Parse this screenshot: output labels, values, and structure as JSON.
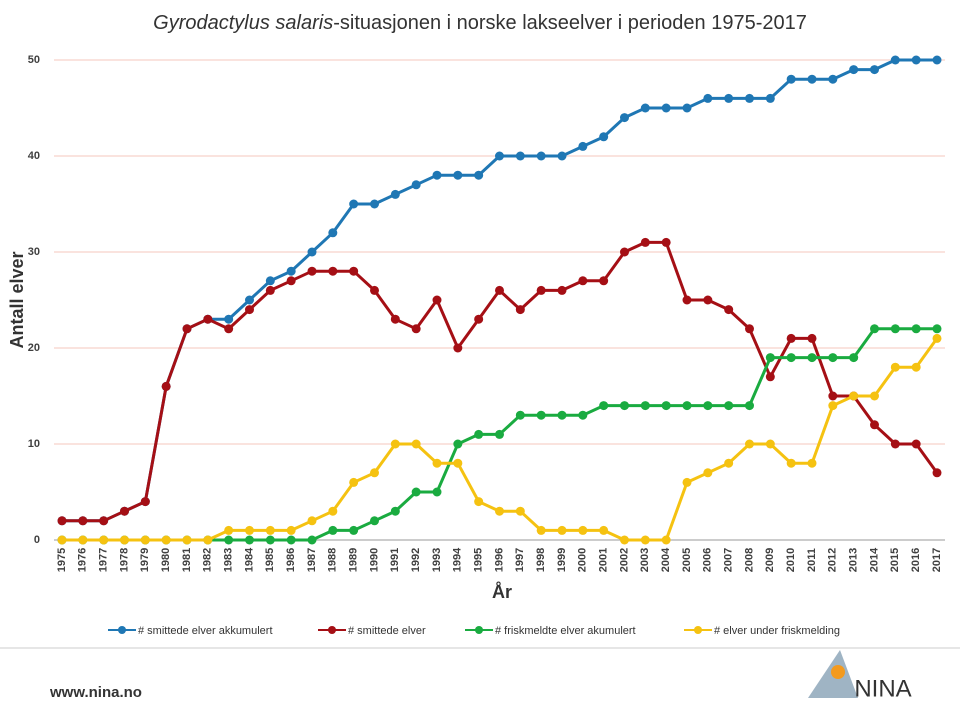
{
  "chart_data": {
    "type": "line",
    "title": [
      "Gyrodactylus salaris",
      "-situasjonen i norske lakseelver i perioden 1975-2017"
    ],
    "x_label": "År",
    "y_label": "Antall elver",
    "categories": [
      "1975",
      "1976",
      "1977",
      "1978",
      "1979",
      "1980",
      "1981",
      "1982",
      "1983",
      "1984",
      "1985",
      "1986",
      "1987",
      "1988",
      "1989",
      "1990",
      "1991",
      "1992",
      "1993",
      "1994",
      "1995",
      "1996",
      "1997",
      "1998",
      "1999",
      "2000",
      "2001",
      "2002",
      "2003",
      "2004",
      "2005",
      "2006",
      "2007",
      "2008",
      "2009",
      "2010",
      "2011",
      "2012",
      "2013",
      "2014",
      "2015",
      "2016",
      "2017"
    ],
    "ylim": [
      0,
      50
    ],
    "yticks": [
      0,
      10,
      20,
      30,
      40,
      50
    ],
    "grid": true,
    "legend": "bottom",
    "series": [
      {
        "name": "# smittede elver akkumulert",
        "color": "#1f77b4",
        "values": [
          2,
          2,
          2,
          3,
          4,
          16,
          22,
          23,
          23,
          25,
          27,
          28,
          30,
          32,
          35,
          35,
          36,
          37,
          38,
          38,
          38,
          40,
          40,
          40,
          40,
          41,
          42,
          44,
          45,
          45,
          45,
          46,
          46,
          46,
          46,
          48,
          48,
          48,
          49,
          49,
          50,
          50,
          50
        ]
      },
      {
        "name": "# smittede elver",
        "color": "#a50f15",
        "values": [
          2,
          2,
          2,
          3,
          4,
          16,
          22,
          23,
          22,
          24,
          26,
          27,
          28,
          28,
          28,
          26,
          23,
          22,
          25,
          20,
          23,
          26,
          24,
          26,
          26,
          27,
          27,
          30,
          31,
          31,
          25,
          25,
          24,
          22,
          17,
          21,
          21,
          15,
          15,
          12,
          10,
          10,
          7
        ]
      },
      {
        "name": "# friskmeldte elver akumulert",
        "color": "#1aab40",
        "values": [
          0,
          0,
          0,
          0,
          0,
          0,
          0,
          0,
          0,
          0,
          0,
          0,
          0,
          1,
          1,
          2,
          3,
          5,
          5,
          10,
          11,
          11,
          13,
          13,
          13,
          13,
          14,
          14,
          14,
          14,
          14,
          14,
          14,
          14,
          19,
          19,
          19,
          19,
          19,
          22,
          22,
          22,
          22
        ]
      },
      {
        "name": "# elver under friskmelding",
        "color": "#f5c211",
        "values": [
          0,
          0,
          0,
          0,
          0,
          0,
          0,
          0,
          1,
          1,
          1,
          1,
          2,
          3,
          6,
          7,
          10,
          10,
          8,
          8,
          4,
          3,
          3,
          1,
          1,
          1,
          1,
          0,
          0,
          0,
          6,
          7,
          8,
          10,
          10,
          8,
          8,
          14,
          15,
          15,
          18,
          18,
          21
        ]
      }
    ]
  },
  "footer": {
    "url": "www.nina.no",
    "logo": "NINA"
  }
}
